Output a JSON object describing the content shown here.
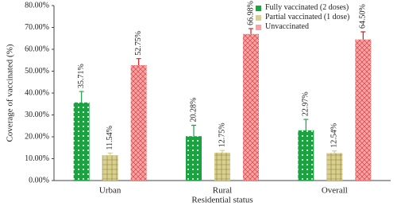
{
  "chart_data": {
    "type": "bar",
    "y_label": "Coverage of vaccinated (%)",
    "x_label": "Residential status",
    "categories": [
      "Urban",
      "Rural",
      "Overall"
    ],
    "series": [
      {
        "name": "Fully vaccinated (2 doses)",
        "color": "#1aa340",
        "values": [
          35.71,
          20.28,
          22.97
        ],
        "value_labels": [
          "35.71%",
          "20.28%",
          "22.97%"
        ],
        "errors": [
          5,
          5,
          5
        ]
      },
      {
        "name": "Partial vaccinated (1 dose)",
        "color": "#d9cf8f",
        "values": [
          11.54,
          12.75,
          12.54
        ],
        "value_labels": [
          "11.54%",
          "12.75%",
          "12.54%"
        ],
        "errors": [
          1,
          1,
          1
        ]
      },
      {
        "name": "Unvaccinated",
        "color": "#f4a6a6",
        "values": [
          52.75,
          66.98,
          64.5
        ],
        "value_labels": [
          "52.75%",
          "66.98%",
          "64.50%"
        ],
        "errors": [
          3,
          2.5,
          3.5
        ]
      }
    ],
    "ylim": [
      0,
      80
    ],
    "yticks": [
      {
        "value": 0,
        "label": "0.00%"
      },
      {
        "value": 10,
        "label": "10.00%"
      },
      {
        "value": 20,
        "label": "20.00%"
      },
      {
        "value": 30,
        "label": "30.00%"
      },
      {
        "value": 40,
        "label": "40.00%"
      },
      {
        "value": 50,
        "label": "50.00%"
      },
      {
        "value": 60,
        "label": "60.00%"
      },
      {
        "value": 70,
        "label": "70.00%"
      },
      {
        "value": 80,
        "label": "80.00%"
      }
    ],
    "legend": "top-right"
  }
}
